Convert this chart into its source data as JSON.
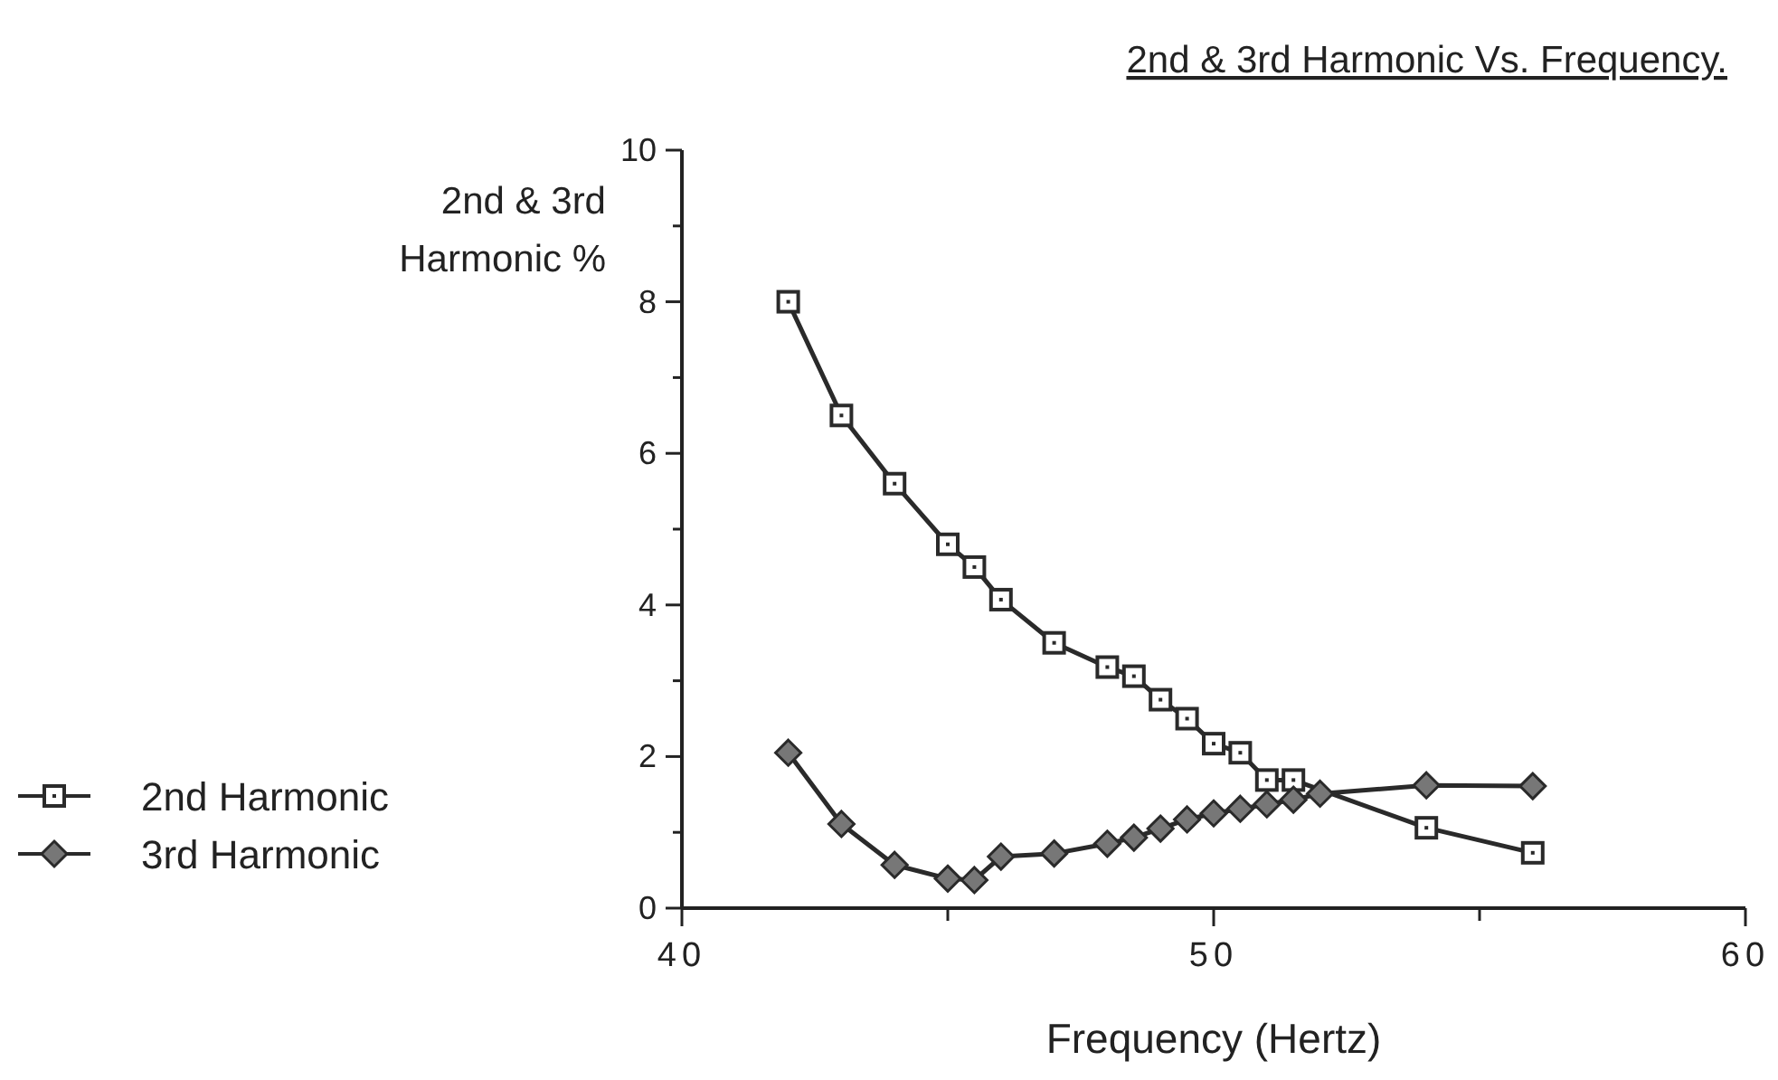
{
  "chart_data": {
    "type": "line",
    "title": "2nd & 3rd Harmonic Vs. Frequency.",
    "xlabel": "Frequency (Hertz)",
    "ylabel": "2nd & 3rd Harmonic %",
    "xlim": [
      40,
      60
    ],
    "xticks": [
      40,
      {
        "value": 45,
        "label": null
      },
      50,
      {
        "value": 55,
        "label": null
      },
      60
    ],
    "ylim": [
      0,
      10
    ],
    "yticks": [
      0,
      {
        "value": 1,
        "label": null
      },
      2,
      {
        "value": 3,
        "label": null
      },
      4,
      {
        "value": 5,
        "label": null
      },
      6,
      {
        "value": 7,
        "label": null
      },
      8,
      {
        "value": 9,
        "label": null
      },
      10
    ],
    "grid": false,
    "legend": "left",
    "series": [
      {
        "name": "2nd Harmonic",
        "color": "#2a2a2a",
        "marker": "square",
        "x": [
          42,
          43,
          44,
          45,
          45.5,
          46,
          47,
          48,
          48.5,
          49,
          49.5,
          50,
          50.5,
          51,
          51.5,
          52,
          54,
          56
        ],
        "values": [
          8.0,
          6.5,
          5.6,
          4.8,
          4.5,
          4.07,
          3.5,
          3.18,
          3.06,
          2.75,
          2.5,
          2.17,
          2.05,
          1.69,
          1.69,
          null,
          1.06,
          0.73
        ]
      },
      {
        "name": "3rd Harmonic",
        "color": "#2a2a2a",
        "marker": "diamond",
        "x": [
          42,
          43,
          44,
          45,
          45.5,
          46,
          47,
          48,
          48.5,
          49,
          49.5,
          50,
          50.5,
          51,
          51.5,
          52,
          54,
          56
        ],
        "values": [
          2.05,
          1.11,
          0.57,
          0.39,
          0.37,
          0.68,
          0.72,
          0.85,
          0.93,
          1.05,
          1.17,
          1.25,
          1.31,
          1.37,
          1.43,
          1.51,
          1.62,
          1.61
        ]
      }
    ]
  }
}
